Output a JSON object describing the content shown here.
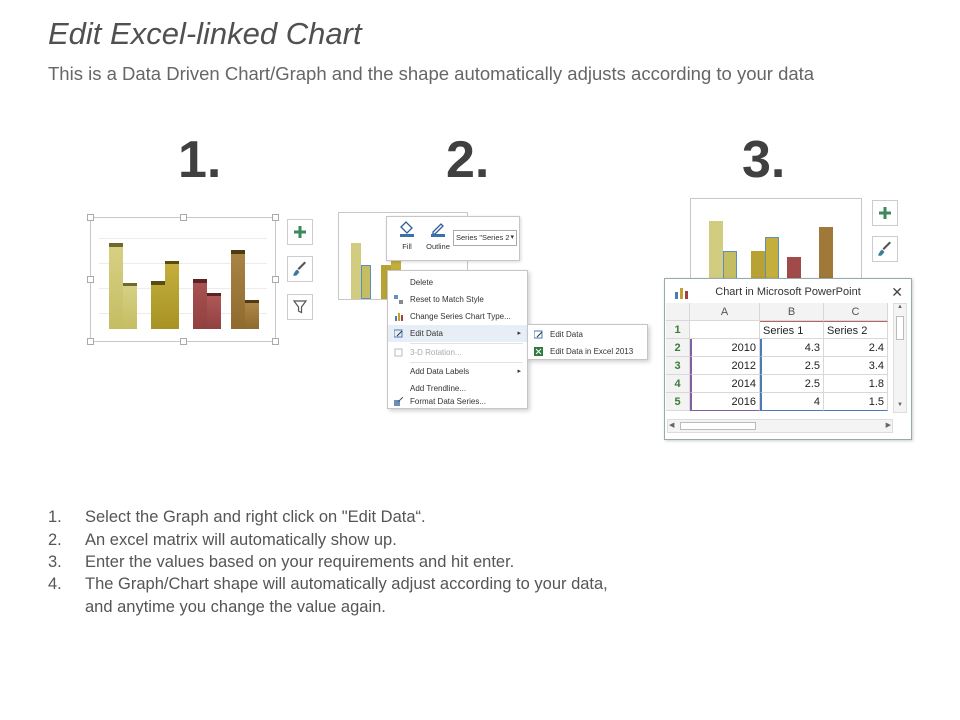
{
  "title": "Edit Excel-linked Chart",
  "subtitle": "This is a Data Driven Chart/Graph and the shape automatically adjusts according to your data",
  "step_numbers": [
    "1.",
    "2.",
    "3."
  ],
  "panel1": {
    "bar_colors": [
      "#d2cc80",
      "#b8a233",
      "#a04a4a",
      "#a07838"
    ],
    "side_buttons": [
      "plus-icon",
      "brush-icon",
      "filter-icon"
    ]
  },
  "panel2": {
    "toolbar": {
      "fill_label": "Fill",
      "outline_label": "Outline",
      "series_select": "Series \"Series 2"
    },
    "menu_items": [
      {
        "label": "Delete",
        "icon": "delete-icon"
      },
      {
        "label": "Reset to Match Style",
        "icon": "reset-icon"
      },
      {
        "label": "Change Series Chart Type...",
        "icon": "chart-type-icon"
      },
      {
        "label": "Edit Data",
        "icon": "edit-data-icon",
        "active": true,
        "submenu": true
      },
      {
        "label": "3-D Rotation...",
        "icon": "rotation-icon",
        "disabled": true
      },
      {
        "label": "Add Data Labels",
        "submenu": true
      },
      {
        "label": "Add Trendline..."
      },
      {
        "label": "Format Data Series...",
        "icon": "format-icon"
      }
    ],
    "submenu_items": [
      {
        "label": "Edit Data",
        "icon": "edit-data-icon"
      },
      {
        "label": "Edit Data in Excel 2013",
        "icon": "excel-icon"
      }
    ]
  },
  "panel3": {
    "window_title": "Chart in Microsoft PowerPoint",
    "columns": [
      "A",
      "B",
      "C"
    ],
    "header_row": [
      "",
      "Series 1",
      "Series 2"
    ],
    "rows": [
      {
        "row": "1",
        "a": "",
        "b": "Series 1",
        "c": "Series 2"
      },
      {
        "row": "2",
        "a": "2010",
        "b": "4.3",
        "c": "2.4"
      },
      {
        "row": "3",
        "a": "2012",
        "b": "2.5",
        "c": "3.4"
      },
      {
        "row": "4",
        "a": "2014",
        "b": "2.5",
        "c": "1.8"
      },
      {
        "row": "5",
        "a": "2016",
        "b": "4",
        "c": "1.5"
      }
    ]
  },
  "steps": [
    {
      "n": "1.",
      "text": "Select the Graph and right click on \"Edit Data“."
    },
    {
      "n": "2.",
      "text": "An excel matrix will automatically show up."
    },
    {
      "n": "3.",
      "text": "Enter the values based on your requirements and hit enter."
    },
    {
      "n": "4.",
      "text": "The Graph/Chart shape will automatically adjust according to your data,"
    },
    {
      "n": "",
      "text": "and anytime you change the value again."
    }
  ]
}
